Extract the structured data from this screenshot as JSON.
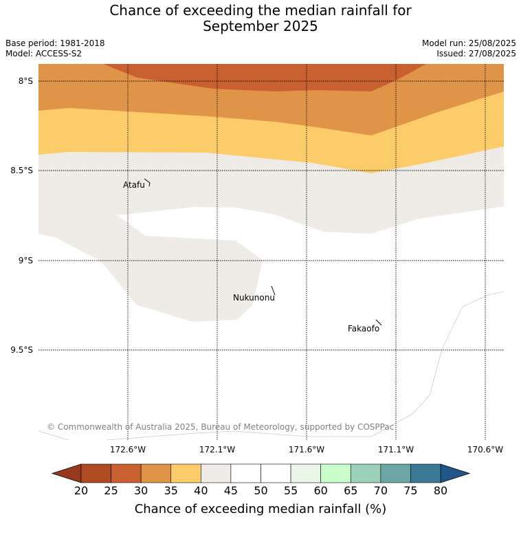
{
  "title_line1": "Chance of exceeding the median rainfall for",
  "title_line2": "September 2025",
  "base_period": "Base period: 1981-2018",
  "model": "Model: ACCESS-S2",
  "model_run": "Model run: 25/08/2025",
  "issued": "Issued: 27/08/2025",
  "lat_labels": [
    "8°S",
    "8.5°S",
    "9°S",
    "9.5°S"
  ],
  "lon_labels": [
    "172.6°W",
    "172.1°W",
    "171.6°W",
    "171.1°W",
    "170.6°W"
  ],
  "places": [
    "Atafu",
    "Nukunonu",
    "Fakaofo"
  ],
  "copyright": "© Commonwealth of Australia 2025, Bureau of Meteorology, supported by COSPPac",
  "colorbar": {
    "ticks": [
      "20",
      "25",
      "30",
      "35",
      "40",
      "45",
      "50",
      "55",
      "60",
      "65",
      "70",
      "75",
      "80"
    ],
    "colors": [
      "#b04a23",
      "#c8602f",
      "#e09447",
      "#fccc6b",
      "#efebe6",
      "#ffffff",
      "#ffffff",
      "#eaf6e8",
      "#c9fdc9",
      "#9bd1b8",
      "#6ba5a5",
      "#3d7896"
    ],
    "low_extend_color": "#97391f",
    "high_extend_color": "#1f5588",
    "label": "Chance of exceeding median rainfall (%)"
  }
}
